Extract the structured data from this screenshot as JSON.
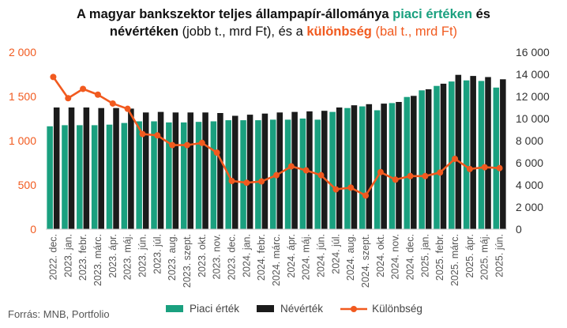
{
  "title": {
    "line1_a": "A magyar bankszektor teljes állampapír-állománya ",
    "line1_piaci": "piaci értéken",
    "line1_b": " és",
    "line2_a": "névértéken",
    "line2_b": " (jobb t., mrd Ft), és a ",
    "line2_kulonbseg": "különbség",
    "line2_c": " (bal t., mrd Ft)"
  },
  "source": "Forrás: MNB, Portfolio",
  "colors": {
    "piaci": "#1aa07f",
    "nevertek": "#1b1b1b",
    "kulonbseg": "#f15a1f",
    "axis_left": "#f15a1f",
    "axis_right": "#333333"
  },
  "chart_data": {
    "type": "bar",
    "categories": [
      "2022. dec.",
      "2023. jan.",
      "2023. febr.",
      "2023. márc.",
      "2023. ápr.",
      "2023. máj.",
      "2023. jún.",
      "2023. júl.",
      "2023. aug.",
      "2023. szept.",
      "2023. okt.",
      "2023. nov.",
      "2023. dec.",
      "2024. jan.",
      "2024. febr.",
      "2024. márc.",
      "2024. ápr.",
      "2024. máj.",
      "2024. jún.",
      "2024. júl.",
      "2024. aug.",
      "2024. szept.",
      "2024. okt.",
      "2024. nov.",
      "2024. dec.",
      "2025. jan.",
      "2025. febr.",
      "2025. márc.",
      "2025. ápr.",
      "2025. máj.",
      "2025. jún."
    ],
    "series": [
      {
        "name": "Piaci érték",
        "axis": "right",
        "type": "bar",
        "values": [
          9300,
          9400,
          9400,
          9400,
          9450,
          9600,
          9750,
          9750,
          9650,
          9650,
          9700,
          9750,
          9850,
          9850,
          9850,
          9900,
          9900,
          10000,
          9900,
          10600,
          10950,
          11100,
          10750,
          11400,
          11950,
          12550,
          12950,
          13350,
          13450,
          13400,
          12800
        ]
      },
      {
        "name": "Névérték",
        "axis": "right",
        "type": "bar",
        "values": [
          11000,
          11000,
          11000,
          10950,
          10950,
          10900,
          10550,
          10600,
          10550,
          10550,
          10550,
          10500,
          10250,
          10350,
          10450,
          10550,
          10600,
          10650,
          10700,
          11000,
          11200,
          11300,
          11350,
          11500,
          12050,
          12650,
          13150,
          13950,
          13850,
          13750,
          13550
        ]
      },
      {
        "name": "Különbség",
        "axis": "left",
        "type": "line",
        "values": [
          1720,
          1480,
          1585,
          1520,
          1420,
          1360,
          1075,
          1060,
          950,
          950,
          975,
          865,
          545,
          525,
          540,
          610,
          710,
          665,
          610,
          450,
          470,
          380,
          645,
          560,
          600,
          600,
          640,
          795,
          680,
          700,
          690
        ]
      }
    ],
    "y_left": {
      "min": 0,
      "max": 2000,
      "ticks": [
        "0",
        "500",
        "1 000",
        "1 500",
        "2 000"
      ]
    },
    "y_right": {
      "min": 0,
      "max": 16000,
      "ticks": [
        "0",
        "2 000",
        "4 000",
        "6 000",
        "8 000",
        "10 000",
        "12 000",
        "14 000",
        "16 000"
      ]
    },
    "grid": false,
    "legend_position": "bottom"
  }
}
